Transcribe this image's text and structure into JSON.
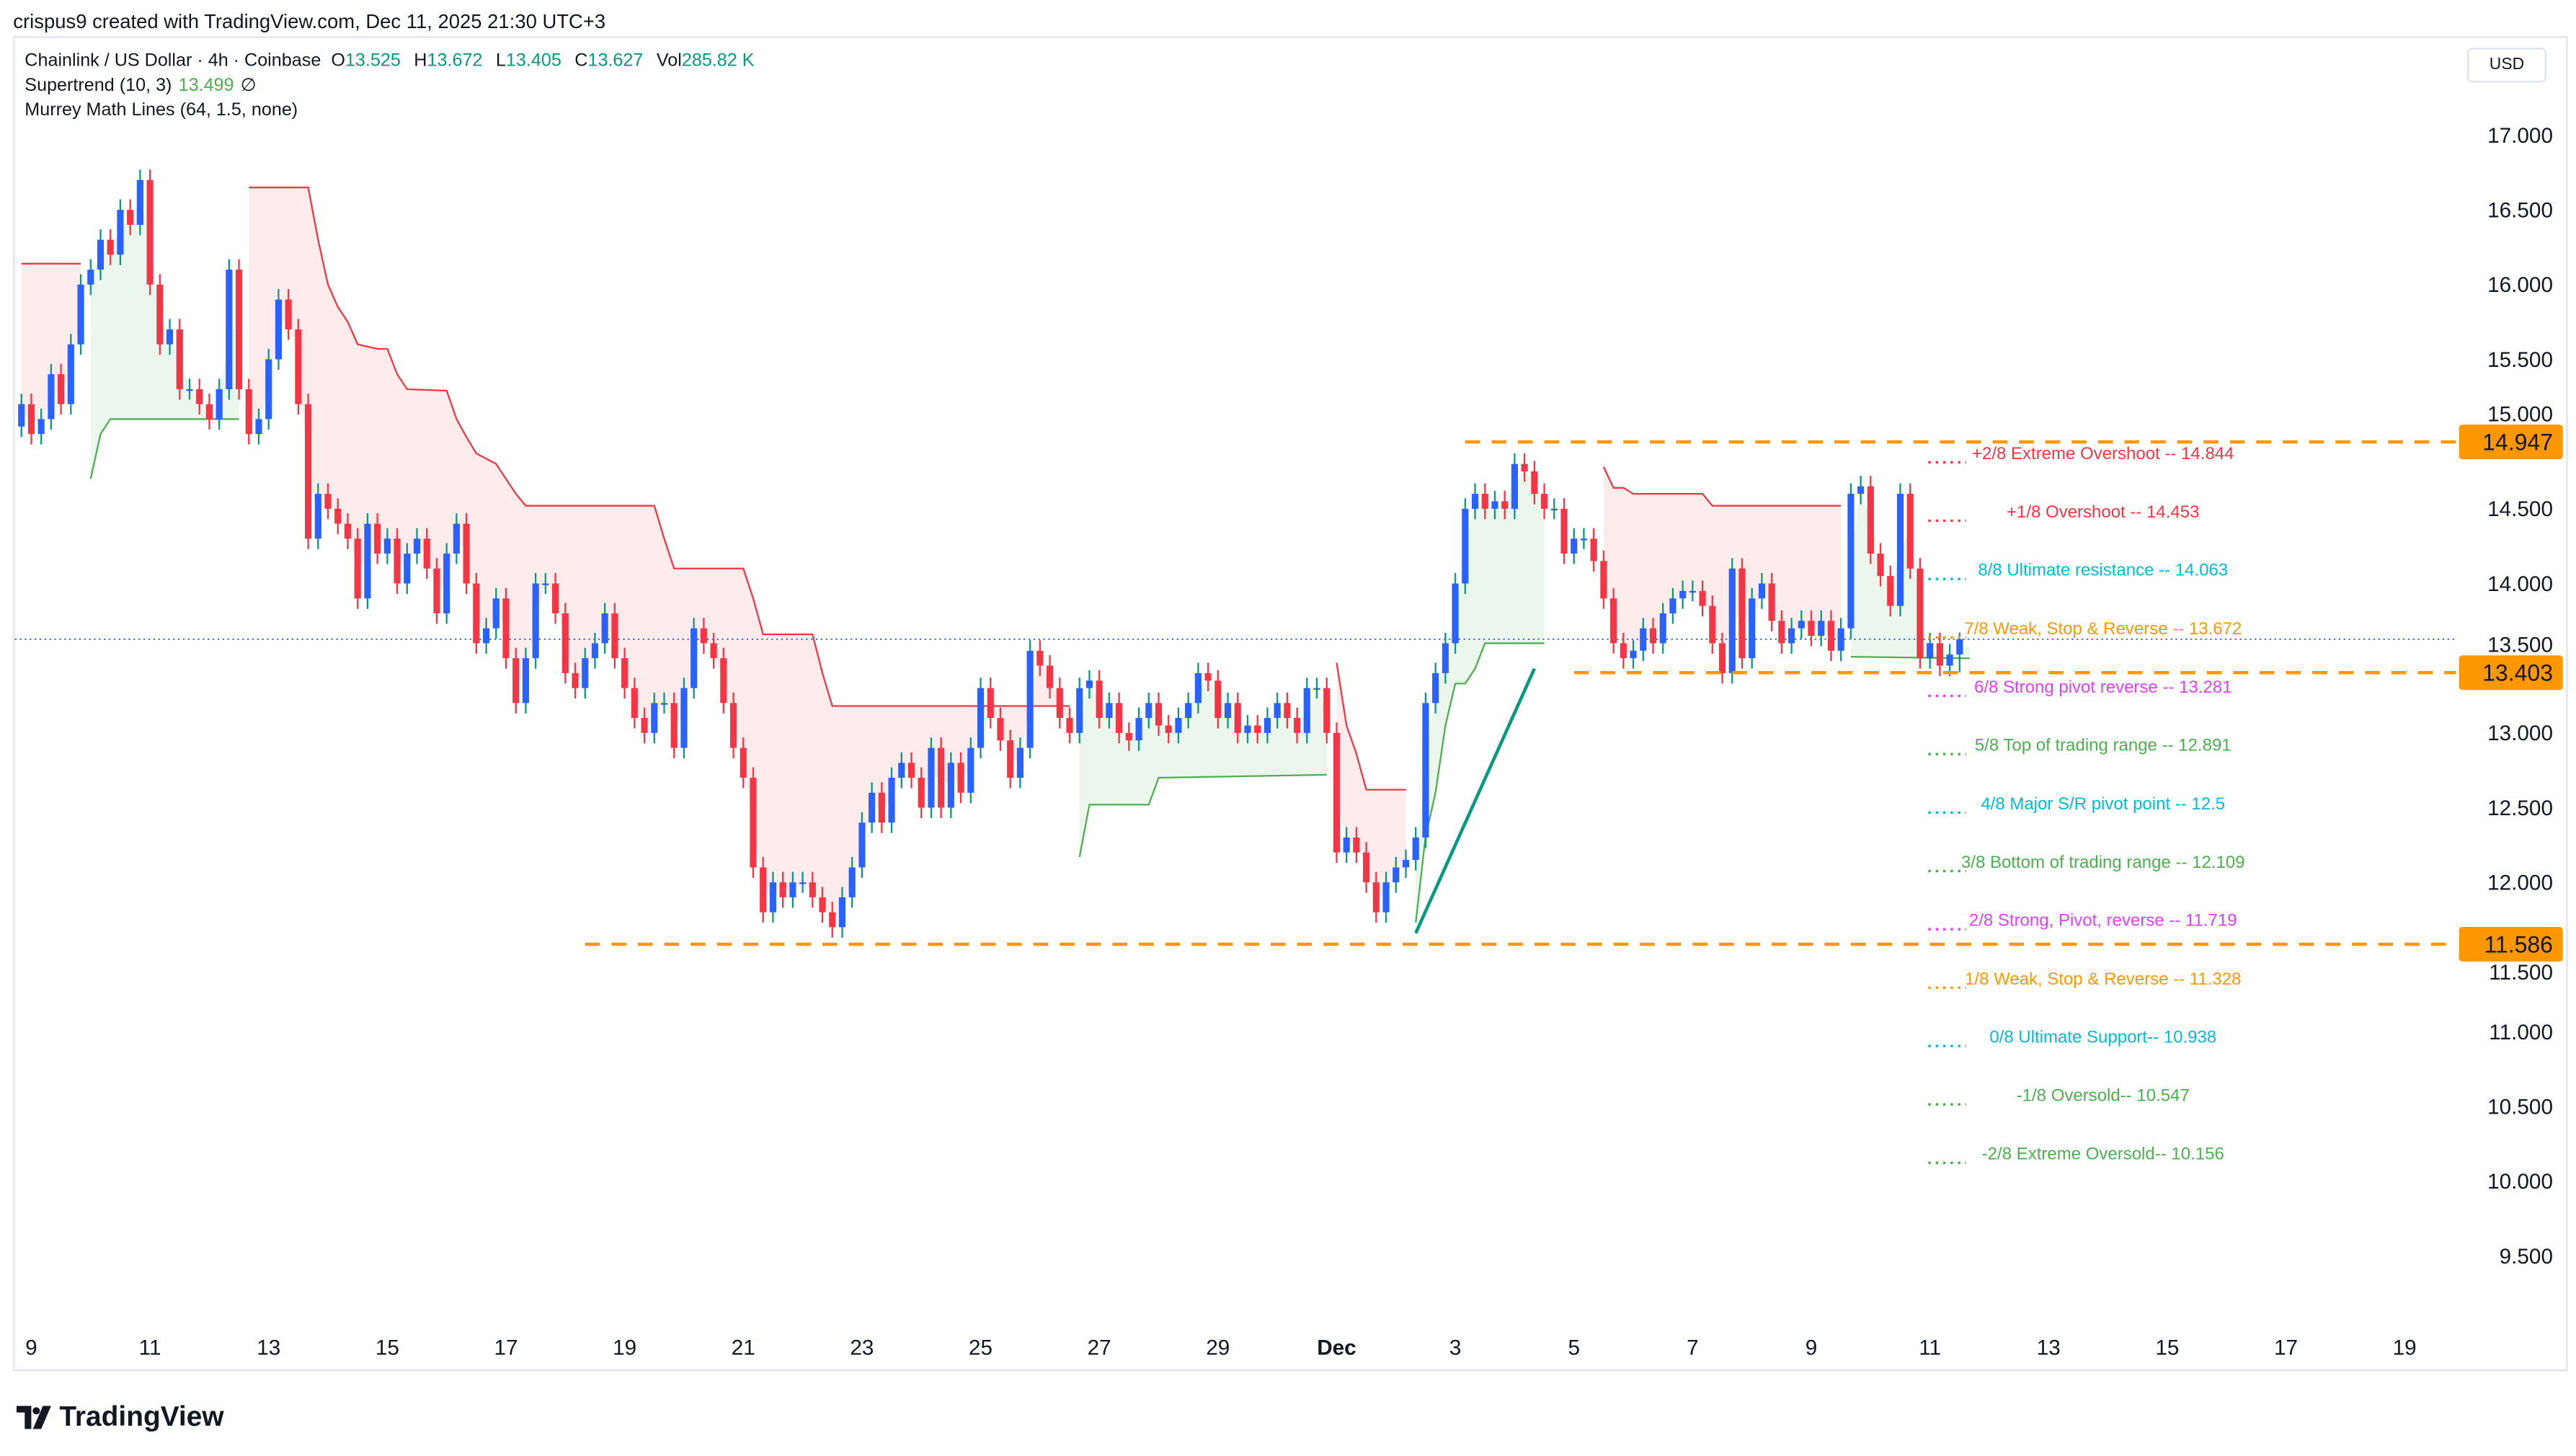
{
  "credit": "crispus9 created with TradingView.com, Dec 11, 2025 21:30 UTC+3",
  "legend": {
    "symbol": "Chainlink / US Dollar · 4h · Coinbase",
    "o_label": "O",
    "o": "13.525",
    "h_label": "H",
    "h": "13.672",
    "l_label": "L",
    "l": "13.405",
    "c_label": "C",
    "c": "13.627",
    "vol_label": "Vol",
    "vol": "285.82 K",
    "supertrend": "Supertrend (10, 3)",
    "supertrend_value": "13.499",
    "supertrend_icon": "∅",
    "murrey": "Murrey Math Lines (64, 1.5, none)"
  },
  "currency_button": "USD",
  "logo": "TradingView",
  "colors": {
    "up_body": "#2962ff",
    "up_wick": "#089981",
    "down": "#f23645",
    "st_up": "#4caf50",
    "st_down": "#f23645",
    "level": "#ff9800",
    "price_line": "#2962ff",
    "trend": "#089981"
  },
  "chart_data": {
    "type": "candlestick",
    "interval": "4h",
    "first_candle": "2025-11-08T20:00",
    "first_open": 15.05,
    "closes": [
      15.2,
      15.0,
      15.1,
      15.4,
      15.2,
      15.6,
      16.0,
      16.1,
      16.3,
      16.2,
      16.5,
      16.4,
      16.7,
      16.0,
      15.6,
      15.7,
      15.3,
      15.3,
      15.2,
      15.1,
      15.3,
      16.1,
      15.3,
      15.0,
      15.1,
      15.5,
      15.9,
      15.7,
      15.2,
      14.3,
      14.6,
      14.5,
      14.4,
      14.3,
      13.9,
      14.4,
      14.2,
      14.3,
      14.0,
      14.2,
      14.3,
      14.1,
      13.8,
      14.2,
      14.4,
      14.0,
      13.6,
      13.7,
      13.9,
      13.5,
      13.2,
      13.5,
      14.0,
      14.0,
      13.8,
      13.4,
      13.3,
      13.5,
      13.6,
      13.8,
      13.5,
      13.3,
      13.1,
      13.0,
      13.2,
      13.2,
      12.9,
      13.3,
      13.7,
      13.6,
      13.5,
      13.2,
      12.9,
      12.7,
      12.1,
      11.8,
      12.0,
      11.9,
      12.0,
      12.0,
      11.9,
      11.8,
      11.7,
      11.9,
      12.1,
      12.4,
      12.6,
      12.4,
      12.7,
      12.8,
      12.7,
      12.5,
      12.9,
      12.5,
      12.8,
      12.6,
      12.9,
      13.3,
      13.1,
      12.95,
      12.7,
      12.9,
      13.55,
      13.45,
      13.3,
      13.1,
      13.0,
      13.3,
      13.35,
      13.1,
      13.2,
      13.0,
      12.95,
      13.1,
      13.2,
      13.05,
      13.0,
      13.1,
      13.2,
      13.4,
      13.35,
      13.1,
      13.2,
      13.0,
      13.05,
      13.0,
      13.1,
      13.2,
      13.1,
      13.0,
      13.3,
      13.3,
      13.0,
      12.2,
      12.3,
      12.2,
      12.0,
      11.8,
      12.0,
      12.1,
      12.15,
      12.3,
      13.2,
      13.4,
      13.6,
      14.0,
      14.5,
      14.6,
      14.5,
      14.55,
      14.5,
      14.8,
      14.75,
      14.6,
      14.5,
      14.5,
      14.2,
      14.3,
      14.3,
      14.15,
      13.9,
      13.6,
      13.5,
      13.55,
      13.7,
      13.6,
      13.8,
      13.9,
      13.95,
      13.95,
      13.85,
      13.6,
      13.4,
      14.1,
      13.5,
      13.9,
      14.0,
      13.75,
      13.6,
      13.7,
      13.75,
      13.65,
      13.75,
      13.55,
      13.7,
      14.6,
      14.65,
      14.2,
      14.05,
      13.85,
      14.6,
      14.1,
      13.5,
      13.6,
      13.45,
      13.525,
      13.627
    ],
    "last_candle": {
      "open": 13.525,
      "high": 13.672,
      "low": 13.405,
      "close": 13.627
    },
    "supertrend": [
      {
        "dir": "down",
        "points": [
          [
            "2025-11-08T20:00",
            16.14
          ],
          [
            "2025-11-09T20:00",
            16.14
          ]
        ]
      },
      {
        "dir": "up",
        "points": [
          [
            "2025-11-10T00:00",
            14.7
          ],
          [
            "2025-11-10T04:00",
            15.0
          ],
          [
            "2025-11-10T08:00",
            15.1
          ],
          [
            "2025-11-12T12:00",
            15.1
          ]
        ]
      },
      {
        "dir": "down",
        "points": [
          [
            "2025-11-12T16:00",
            16.65
          ],
          [
            "2025-11-13T16:00",
            16.65
          ],
          [
            "2025-11-13T20:00",
            16.3
          ],
          [
            "2025-11-14T00:00",
            16.0
          ],
          [
            "2025-11-14T04:00",
            15.85
          ],
          [
            "2025-11-14T08:00",
            15.75
          ],
          [
            "2025-11-14T12:00",
            15.6
          ],
          [
            "2025-11-14T20:00",
            15.57
          ],
          [
            "2025-11-15T00:00",
            15.57
          ],
          [
            "2025-11-15T04:00",
            15.4
          ],
          [
            "2025-11-15T08:00",
            15.3
          ],
          [
            "2025-11-16T00:00",
            15.29
          ],
          [
            "2025-11-16T04:00",
            15.1
          ],
          [
            "2025-11-16T08:00",
            14.98
          ],
          [
            "2025-11-16T12:00",
            14.87
          ],
          [
            "2025-11-16T20:00",
            14.8
          ],
          [
            "2025-11-17T00:00",
            14.7
          ],
          [
            "2025-11-17T04:00",
            14.6
          ],
          [
            "2025-11-17T08:00",
            14.52
          ],
          [
            "2025-11-19T12:00",
            14.52
          ],
          [
            "2025-11-19T16:00",
            14.3
          ],
          [
            "2025-11-19T20:00",
            14.1
          ],
          [
            "2025-11-21T00:00",
            14.1
          ],
          [
            "2025-11-21T04:00",
            13.9
          ],
          [
            "2025-11-21T08:00",
            13.66
          ],
          [
            "2025-11-22T04:00",
            13.66
          ],
          [
            "2025-11-22T08:00",
            13.4
          ],
          [
            "2025-11-22T12:00",
            13.18
          ],
          [
            "2025-11-26T12:00",
            13.18
          ]
        ]
      },
      {
        "dir": "up",
        "points": [
          [
            "2025-11-26T16:00",
            12.17
          ],
          [
            "2025-11-26T20:00",
            12.52
          ],
          [
            "2025-11-27T20:00",
            12.52
          ],
          [
            "2025-11-28T00:00",
            12.7
          ],
          [
            "2025-11-30T20:00",
            12.72
          ]
        ]
      },
      {
        "dir": "down",
        "points": [
          [
            "2025-12-01T00:00",
            13.47
          ],
          [
            "2025-12-01T04:00",
            13.05
          ],
          [
            "2025-12-01T08:00",
            12.86
          ],
          [
            "2025-12-01T12:00",
            12.62
          ],
          [
            "2025-12-02T04:00",
            12.62
          ]
        ]
      },
      {
        "dir": "up",
        "points": [
          [
            "2025-12-02T08:00",
            11.73
          ],
          [
            "2025-12-02T12:00",
            12.31
          ],
          [
            "2025-12-02T16:00",
            12.6
          ],
          [
            "2025-12-02T20:00",
            13.05
          ],
          [
            "2025-12-03T00:00",
            13.33
          ],
          [
            "2025-12-03T04:00",
            13.33
          ],
          [
            "2025-12-03T08:00",
            13.43
          ],
          [
            "2025-12-03T12:00",
            13.6
          ],
          [
            "2025-12-04T12:00",
            13.6
          ]
        ]
      },
      {
        "dir": "down",
        "points": [
          [
            "2025-12-05T12:00",
            14.78
          ],
          [
            "2025-12-05T16:00",
            14.64
          ],
          [
            "2025-12-05T20:00",
            14.64
          ],
          [
            "2025-12-06T00:00",
            14.6
          ],
          [
            "2025-12-07T04:00",
            14.6
          ],
          [
            "2025-12-07T08:00",
            14.52
          ],
          [
            "2025-12-09T12:00",
            14.52
          ]
        ]
      },
      {
        "dir": "up",
        "points": [
          [
            "2025-12-09T16:00",
            13.51
          ],
          [
            "2025-12-11T16:00",
            13.499
          ]
        ]
      }
    ],
    "horizontal_levels": [
      {
        "value": 14.947,
        "label": "14.947",
        "from": "2025-12-03T04:00"
      },
      {
        "value": 13.403,
        "label": "13.403",
        "from": "2025-12-05T00:00"
      },
      {
        "value": 11.586,
        "label": "11.586",
        "from": "2025-11-18T08:00"
      }
    ],
    "trendline": [
      [
        "2025-12-02T08:00",
        11.66
      ],
      [
        "2025-12-04T08:00",
        13.43
      ]
    ],
    "current_price": 13.627,
    "murrey_levels": [
      {
        "label": "+2/8 Extreme Overshoot --  14.844",
        "value": 14.844,
        "color": "#f23645"
      },
      {
        "label": "+1/8 Overshoot --  14.453",
        "value": 14.453,
        "color": "#f23645"
      },
      {
        "label": "8/8 Ultimate resistance --  14.063",
        "value": 14.063,
        "color": "#00bcd4"
      },
      {
        "label": "7/8 Weak, Stop & Reverse --  13.672",
        "value": 13.672,
        "color": "#ff9800"
      },
      {
        "label": "6/8 Strong pivot reverse --  13.281",
        "value": 13.281,
        "color": "#e040fb"
      },
      {
        "label": "5/8 Top of trading range --  12.891",
        "value": 12.891,
        "color": "#4caf50"
      },
      {
        "label": "4/8 Major S/R pivot point --  12.5",
        "value": 12.5,
        "color": "#00bcd4"
      },
      {
        "label": "3/8 Bottom of trading range --  12.109",
        "value": 12.109,
        "color": "#4caf50"
      },
      {
        "label": "2/8 Strong, Pivot, reverse --  11.719",
        "value": 11.719,
        "color": "#e040fb"
      },
      {
        "label": "1/8 Weak, Stop & Reverse --  11.328",
        "value": 11.328,
        "color": "#ff9800"
      },
      {
        "label": "0/8 Ultimate Support--  10.938",
        "value": 10.938,
        "color": "#00bcd4"
      },
      {
        "label": "-1/8 Oversold--  10.547",
        "value": 10.547,
        "color": "#4caf50"
      },
      {
        "label": "-2/8 Extreme Oversold--  10.156",
        "value": 10.156,
        "color": "#4caf50"
      }
    ],
    "y_ticks": [
      "17.000",
      "16.500",
      "16.000",
      "15.500",
      "15.000",
      "14.500",
      "14.000",
      "13.500",
      "13.000",
      "12.500",
      "12.000",
      "11.500",
      "11.000",
      "10.500",
      "10.000",
      "9.500"
    ],
    "x_ticks": [
      "9",
      "11",
      "13",
      "15",
      "17",
      "19",
      "21",
      "23",
      "25",
      "27",
      "29",
      "Dec",
      "3",
      "5",
      "7",
      "9",
      "11",
      "13",
      "15",
      "17",
      "19"
    ],
    "ylim": [
      9.5,
      17.0
    ],
    "grid": false
  }
}
